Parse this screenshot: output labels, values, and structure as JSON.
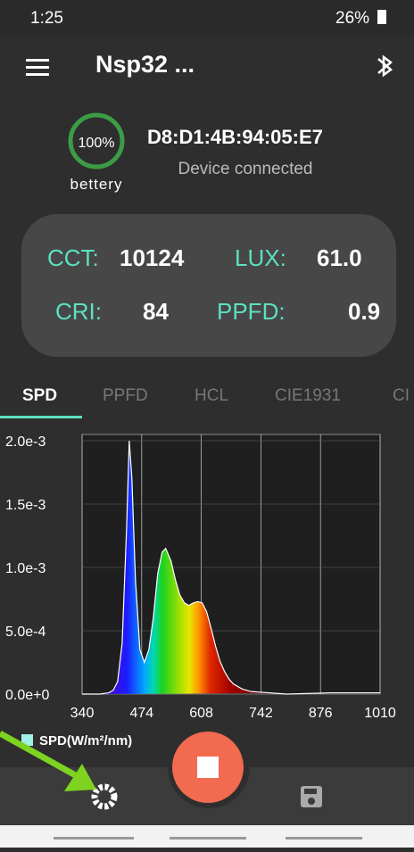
{
  "status_bar": {
    "time": "1:25",
    "battery": "26%"
  },
  "app_bar": {
    "title": "Nsp32 ..."
  },
  "device": {
    "battery_level": "100%",
    "battery_label": "bettery",
    "address": "D8:D1:4B:94:05:E7",
    "status": "Device connected"
  },
  "metrics": [
    {
      "label": "CCT:",
      "value": "10124"
    },
    {
      "label": "LUX:",
      "value": "61.0"
    },
    {
      "label": "CRI:",
      "value": "84"
    },
    {
      "label": "PPFD:",
      "value": "0.9"
    }
  ],
  "tabs": [
    "SPD",
    "PPFD",
    "HCL",
    "CIE1931",
    "CI"
  ],
  "chart_data": {
    "type": "area",
    "x": [
      340,
      380,
      400,
      410,
      420,
      430,
      440,
      446,
      452,
      460,
      470,
      480,
      490,
      500,
      510,
      520,
      528,
      540,
      550,
      560,
      570,
      580,
      590,
      600,
      610,
      620,
      630,
      640,
      650,
      660,
      670,
      680,
      700,
      720,
      760,
      800,
      900,
      1010
    ],
    "series": [
      {
        "name": "SPD(W/m²/nm)",
        "color": "#9ff0e6",
        "values": [
          0,
          0,
          1e-05,
          3e-05,
          0.0001,
          0.0004,
          0.0013,
          0.002,
          0.0017,
          0.0009,
          0.00035,
          0.00025,
          0.00035,
          0.0006,
          0.00095,
          0.00112,
          0.00115,
          0.00105,
          0.0009,
          0.00078,
          0.00072,
          0.0007,
          0.00072,
          0.00073,
          0.00072,
          0.00065,
          0.00052,
          0.00038,
          0.00026,
          0.00018,
          0.00012,
          8e-05,
          4e-05,
          2e-05,
          1e-05,
          0,
          1e-05,
          1e-05
        ]
      }
    ],
    "xlim": [
      340,
      1010
    ],
    "xticks": [
      340,
      474,
      608,
      742,
      876,
      1010
    ],
    "ylim": [
      0,
      0.002
    ],
    "yticks": [
      {
        "value": 0,
        "label": "0.0e+0"
      },
      {
        "value": 0.0005,
        "label": "5.0e-4"
      },
      {
        "value": 0.001,
        "label": "1.0e-3"
      },
      {
        "value": 0.0015,
        "label": "1.5e-3"
      },
      {
        "value": 0.002,
        "label": "2.0e-3"
      }
    ],
    "grid": true
  }
}
